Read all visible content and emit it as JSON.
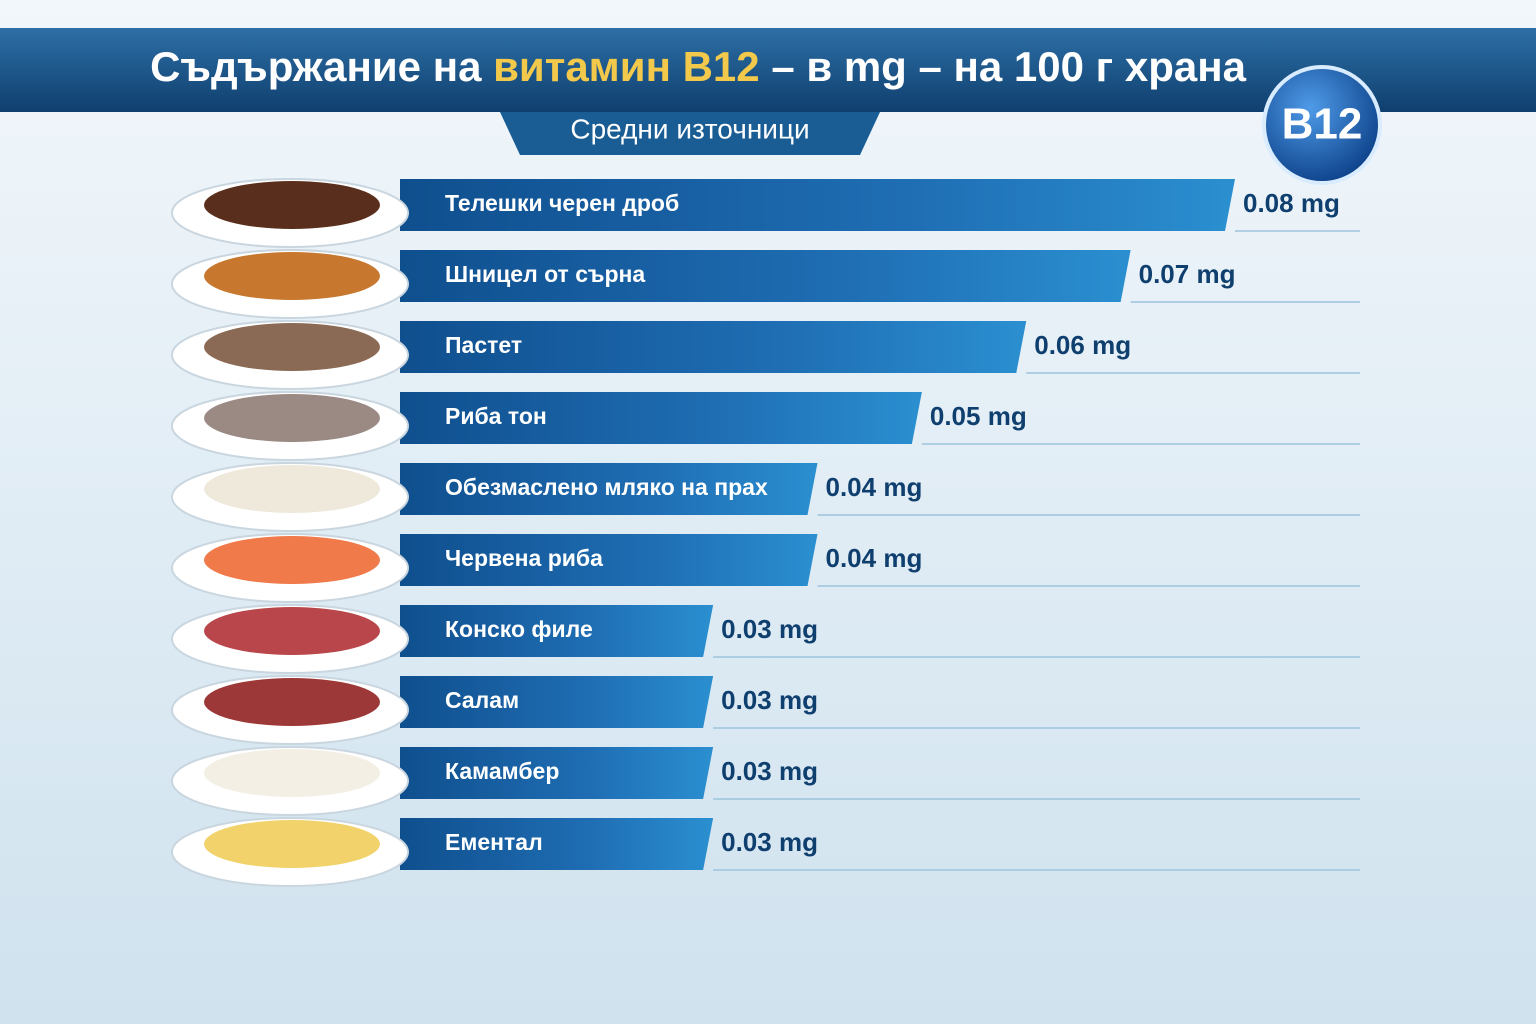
{
  "chart_data": {
    "type": "bar",
    "orientation": "horizontal",
    "title": {
      "before": "Съдържание на ",
      "highlight": "витамин B12",
      "after": " – в mg – на 100 г храна"
    },
    "subtitle": "Средни източници",
    "badge": "B12",
    "categories": [
      "Телешки черен дроб",
      "Шницел от сърна",
      "Пастет",
      "Риба тон",
      "Обезмаслено мляко на прах",
      "Червена риба",
      "Конско филе",
      "Салам",
      "Камамбер",
      "Ементал"
    ],
    "values": [
      0.08,
      0.07,
      0.06,
      0.05,
      0.04,
      0.04,
      0.03,
      0.03,
      0.03,
      0.03
    ],
    "value_labels": [
      "0.08 mg",
      "0.07 mg",
      "0.06 mg",
      "0.05 mg",
      "0.04 mg",
      "0.04 mg",
      "0.03 mg",
      "0.03 mg",
      "0.03 mg",
      "0.03 mg"
    ],
    "color": "#1f6db3"
  }
}
